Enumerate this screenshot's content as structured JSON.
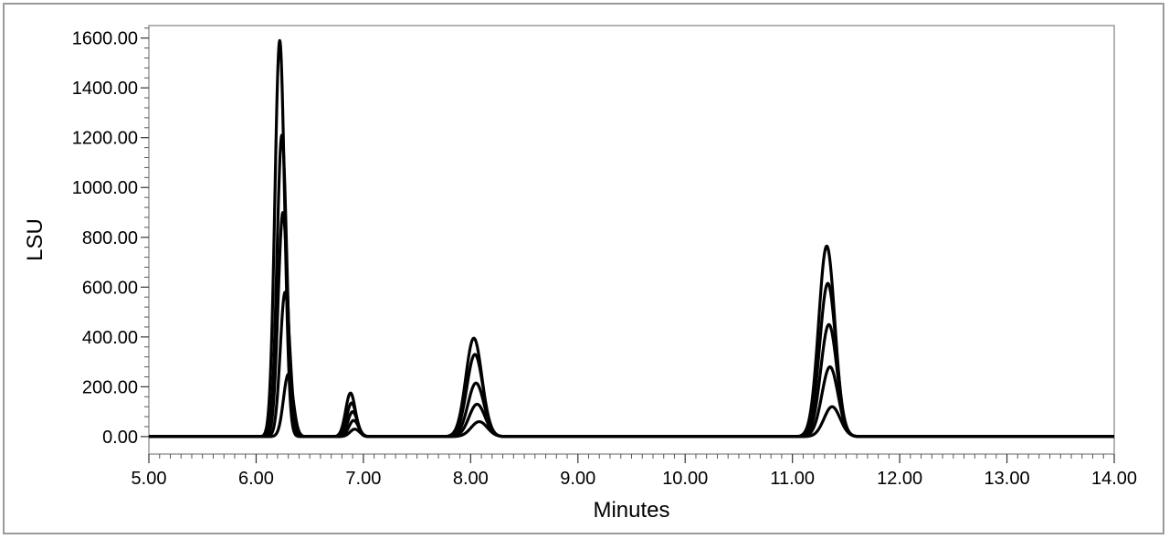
{
  "chart_data": {
    "type": "line",
    "title": "",
    "xlabel": "Minutes",
    "ylabel": "LSU",
    "xlim": [
      5.0,
      14.0
    ],
    "ylim": [
      -70,
      1650
    ],
    "x_ticks": [
      5.0,
      6.0,
      7.0,
      8.0,
      9.0,
      10.0,
      11.0,
      12.0,
      13.0,
      14.0
    ],
    "x_tick_labels": [
      "5.00",
      "6.00",
      "7.00",
      "8.00",
      "9.00",
      "10.00",
      "11.00",
      "12.00",
      "13.00",
      "14.00"
    ],
    "y_ticks": [
      0,
      200,
      400,
      600,
      800,
      1000,
      1200,
      1400,
      1600
    ],
    "y_tick_labels": [
      "0.00",
      "200.00",
      "400.00",
      "600.00",
      "800.00",
      "1000.00",
      "1200.00",
      "1400.00",
      "1600.00"
    ],
    "grid": false,
    "line_color": "#000000",
    "series": [
      {
        "peaks": [
          [
            6.22,
            1590
          ],
          [
            6.88,
            175
          ],
          [
            8.03,
            395
          ],
          [
            11.32,
            765
          ]
        ]
      },
      {
        "peaks": [
          [
            6.24,
            1210
          ],
          [
            6.89,
            135
          ],
          [
            8.04,
            330
          ],
          [
            11.33,
            615
          ]
        ]
      },
      {
        "peaks": [
          [
            6.25,
            900
          ],
          [
            6.9,
            100
          ],
          [
            8.05,
            215
          ],
          [
            11.34,
            450
          ]
        ]
      },
      {
        "peaks": [
          [
            6.27,
            580
          ],
          [
            6.91,
            65
          ],
          [
            8.06,
            130
          ],
          [
            11.35,
            280
          ]
        ]
      },
      {
        "peaks": [
          [
            6.3,
            250
          ],
          [
            6.92,
            30
          ],
          [
            8.08,
            60
          ],
          [
            11.37,
            120
          ]
        ]
      }
    ]
  }
}
